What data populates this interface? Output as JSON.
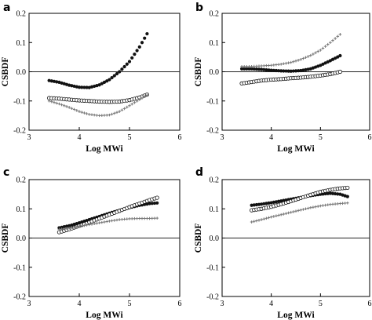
{
  "chart_data": [
    {
      "panel": "a",
      "type": "scatter",
      "xlabel": "Log MWi",
      "ylabel": "CSBDF",
      "xlim": [
        3,
        6
      ],
      "ylim": [
        -0.2,
        0.2
      ],
      "xticks": [
        "3",
        "4",
        "5",
        "6"
      ],
      "yticks": [
        "-0.2",
        "-0.1",
        "0.0",
        "0.1",
        "0.2"
      ],
      "reference_line_y": 0,
      "series": [
        {
          "marker": "filled-circle",
          "color": "#111111",
          "x": [
            3.4,
            3.6,
            3.8,
            4.0,
            4.2,
            4.4,
            4.6,
            4.8,
            5.0,
            5.2,
            5.35
          ],
          "y": [
            -0.03,
            -0.036,
            -0.046,
            -0.053,
            -0.054,
            -0.045,
            -0.027,
            0.0,
            0.035,
            0.085,
            0.13
          ]
        },
        {
          "marker": "open-circle",
          "color": "#111111",
          "x": [
            3.4,
            3.6,
            3.8,
            4.0,
            4.2,
            4.4,
            4.6,
            4.8,
            5.0,
            5.2,
            5.35
          ],
          "y": [
            -0.09,
            -0.092,
            -0.095,
            -0.098,
            -0.1,
            -0.102,
            -0.103,
            -0.102,
            -0.097,
            -0.088,
            -0.078
          ]
        },
        {
          "marker": "cross",
          "color": "#777777",
          "x": [
            3.4,
            3.6,
            3.8,
            4.0,
            4.2,
            4.4,
            4.6,
            4.8,
            5.0,
            5.2,
            5.35
          ],
          "y": [
            -0.1,
            -0.11,
            -0.122,
            -0.136,
            -0.146,
            -0.15,
            -0.148,
            -0.136,
            -0.116,
            -0.095,
            -0.08
          ]
        }
      ]
    },
    {
      "panel": "b",
      "type": "scatter",
      "xlabel": "Log MWi",
      "ylabel": "CSBDF",
      "xlim": [
        3,
        6
      ],
      "ylim": [
        -0.2,
        0.2
      ],
      "xticks": [
        "3",
        "4",
        "5",
        "6"
      ],
      "yticks": [
        "-0.2",
        "-0.1",
        "0.0",
        "0.1",
        "0.2"
      ],
      "reference_line_y": 0,
      "series": [
        {
          "marker": "filled-circle",
          "color": "#111111",
          "x": [
            3.4,
            3.6,
            3.8,
            4.0,
            4.2,
            4.4,
            4.6,
            4.8,
            5.0,
            5.2,
            5.4
          ],
          "y": [
            0.01,
            0.01,
            0.008,
            0.005,
            0.003,
            0.002,
            0.004,
            0.01,
            0.022,
            0.038,
            0.055
          ]
        },
        {
          "marker": "open-circle",
          "color": "#111111",
          "x": [
            3.4,
            3.6,
            3.8,
            4.0,
            4.2,
            4.4,
            4.6,
            4.8,
            5.0,
            5.2,
            5.4
          ],
          "y": [
            -0.04,
            -0.035,
            -0.03,
            -0.027,
            -0.025,
            -0.022,
            -0.02,
            -0.017,
            -0.013,
            -0.008,
            0.0
          ]
        },
        {
          "marker": "cross",
          "color": "#777777",
          "x": [
            3.4,
            3.6,
            3.8,
            4.0,
            4.2,
            4.4,
            4.6,
            4.8,
            5.0,
            5.2,
            5.4
          ],
          "y": [
            0.018,
            0.018,
            0.02,
            0.022,
            0.026,
            0.032,
            0.042,
            0.056,
            0.074,
            0.1,
            0.128
          ]
        }
      ]
    },
    {
      "panel": "c",
      "type": "scatter",
      "xlabel": "Log MWi",
      "ylabel": "CSBDF",
      "xlim": [
        3,
        6
      ],
      "ylim": [
        -0.2,
        0.2
      ],
      "xticks": [
        "3",
        "4",
        "5",
        "6"
      ],
      "yticks": [
        "-0.2",
        "-0.1",
        "0.0",
        "0.1",
        "0.2"
      ],
      "reference_line_y": 0,
      "series": [
        {
          "marker": "filled-circle",
          "color": "#111111",
          "x": [
            3.6,
            3.8,
            4.0,
            4.2,
            4.4,
            4.6,
            4.8,
            5.0,
            5.2,
            5.4,
            5.55
          ],
          "y": [
            0.035,
            0.042,
            0.052,
            0.063,
            0.074,
            0.085,
            0.095,
            0.104,
            0.112,
            0.118,
            0.12
          ]
        },
        {
          "marker": "open-circle",
          "color": "#111111",
          "x": [
            3.6,
            3.8,
            4.0,
            4.2,
            4.4,
            4.6,
            4.8,
            5.0,
            5.2,
            5.4,
            5.55
          ],
          "y": [
            0.02,
            0.03,
            0.042,
            0.054,
            0.067,
            0.08,
            0.093,
            0.106,
            0.118,
            0.13,
            0.138
          ]
        },
        {
          "marker": "cross",
          "color": "#777777",
          "x": [
            3.6,
            3.8,
            4.0,
            4.2,
            4.4,
            4.6,
            4.8,
            5.0,
            5.2,
            5.4,
            5.55
          ],
          "y": [
            0.03,
            0.034,
            0.04,
            0.046,
            0.052,
            0.058,
            0.063,
            0.066,
            0.067,
            0.067,
            0.068
          ]
        }
      ]
    },
    {
      "panel": "d",
      "type": "scatter",
      "xlabel": "Log MWi",
      "ylabel": "CSBDF",
      "xlim": [
        3,
        6
      ],
      "ylim": [
        -0.2,
        0.2
      ],
      "xticks": [
        "3",
        "4",
        "5",
        "6"
      ],
      "yticks": [
        "-0.2",
        "-0.1",
        "0.0",
        "0.1",
        "0.2"
      ],
      "reference_line_y": 0,
      "series": [
        {
          "marker": "filled-circle",
          "color": "#111111",
          "x": [
            3.6,
            3.8,
            4.0,
            4.2,
            4.4,
            4.6,
            4.8,
            5.0,
            5.2,
            5.4,
            5.55
          ],
          "y": [
            0.112,
            0.116,
            0.121,
            0.127,
            0.133,
            0.139,
            0.145,
            0.15,
            0.153,
            0.15,
            0.142
          ]
        },
        {
          "marker": "open-circle",
          "color": "#111111",
          "x": [
            3.6,
            3.8,
            4.0,
            4.2,
            4.4,
            4.6,
            4.8,
            5.0,
            5.2,
            5.4,
            5.55
          ],
          "y": [
            0.095,
            0.1,
            0.107,
            0.116,
            0.126,
            0.137,
            0.148,
            0.158,
            0.165,
            0.17,
            0.172
          ]
        },
        {
          "marker": "cross",
          "color": "#777777",
          "x": [
            3.6,
            3.8,
            4.0,
            4.2,
            4.4,
            4.6,
            4.8,
            5.0,
            5.2,
            5.4,
            5.55
          ],
          "y": [
            0.055,
            0.063,
            0.072,
            0.08,
            0.088,
            0.096,
            0.104,
            0.11,
            0.115,
            0.118,
            0.12
          ]
        }
      ]
    }
  ]
}
